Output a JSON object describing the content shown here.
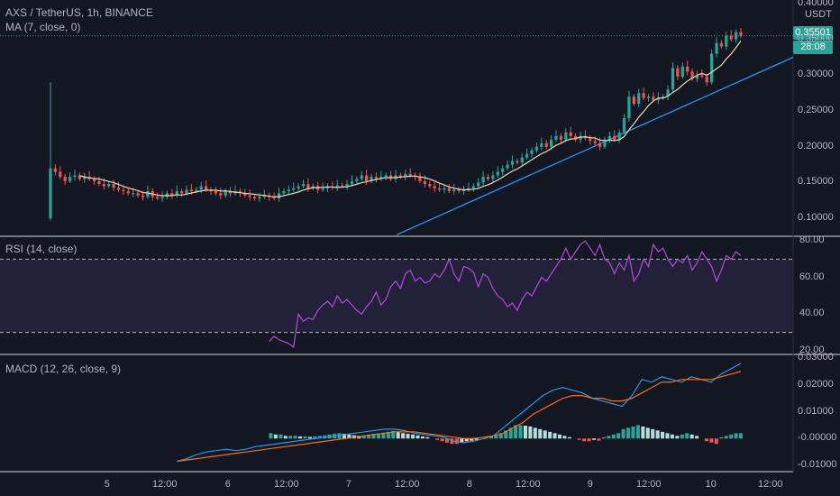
{
  "header": {
    "symbol": "AXS / TetherUS, 1h, BINANCE",
    "ma_label": "MA (7, close, 0)",
    "rsi_label": "RSI (14, close)",
    "macd_label": "MACD (12, 26, close, 9)",
    "currency": "USDT"
  },
  "price_tag": {
    "value": "0.35501",
    "countdown": "28:08",
    "color": "#26a69a"
  },
  "colors": {
    "up": "#26a69a",
    "down": "#ef5350",
    "ma": "#f0d5b0",
    "trend": "#2196f3",
    "rsi": "#b14dd8",
    "macd": "#2196f3",
    "signal": "#ff6d00",
    "hist_up_strong": "#26a69a",
    "hist_up_weak": "#b2dfdb",
    "hist_down_strong": "#ef5350",
    "hist_down_weak": "#ffcdd2"
  },
  "x_axis": {
    "labels": [
      "5",
      "12:00",
      "6",
      "12:00",
      "7",
      "12:00",
      "8",
      "12:00",
      "9",
      "12:00",
      "10",
      "12:00"
    ]
  },
  "chart_data": [
    {
      "type": "candlestick",
      "title": "AXS / TetherUS, 1h, BINANCE",
      "y_ticks": [
        "0.40000",
        "0.35000",
        "0.30000",
        "0.25000",
        "0.20000",
        "0.15000",
        "0.10000"
      ],
      "ylim": [
        0.075,
        0.405
      ],
      "last_price": 0.35501,
      "candles_close": [
        0.17,
        0.165,
        0.158,
        0.152,
        0.158,
        0.16,
        0.155,
        0.158,
        0.155,
        0.152,
        0.148,
        0.145,
        0.148,
        0.143,
        0.14,
        0.138,
        0.135,
        0.135,
        0.132,
        0.13,
        0.138,
        0.13,
        0.128,
        0.13,
        0.135,
        0.132,
        0.138,
        0.135,
        0.14,
        0.138,
        0.14,
        0.145,
        0.14,
        0.138,
        0.135,
        0.132,
        0.138,
        0.135,
        0.138,
        0.135,
        0.132,
        0.13,
        0.128,
        0.13,
        0.132,
        0.13,
        0.128,
        0.135,
        0.138,
        0.14,
        0.142,
        0.145,
        0.148,
        0.142,
        0.145,
        0.14,
        0.142,
        0.145,
        0.143,
        0.146,
        0.145,
        0.148,
        0.152,
        0.155,
        0.16,
        0.152,
        0.158,
        0.155,
        0.158,
        0.16,
        0.155,
        0.16,
        0.158,
        0.162,
        0.16,
        0.158,
        0.152,
        0.148,
        0.145,
        0.142,
        0.14,
        0.142,
        0.138,
        0.14,
        0.138,
        0.14,
        0.142,
        0.145,
        0.15,
        0.158,
        0.155,
        0.16,
        0.165,
        0.17,
        0.175,
        0.18,
        0.178,
        0.185,
        0.19,
        0.195,
        0.2,
        0.205,
        0.2,
        0.21,
        0.215,
        0.21,
        0.22,
        0.215,
        0.21,
        0.215,
        0.212,
        0.208,
        0.205,
        0.2,
        0.21,
        0.215,
        0.21,
        0.22,
        0.24,
        0.27,
        0.26,
        0.275,
        0.268,
        0.27,
        0.265,
        0.268,
        0.27,
        0.28,
        0.31,
        0.298,
        0.312,
        0.305,
        0.295,
        0.3,
        0.298,
        0.29,
        0.33,
        0.345,
        0.34,
        0.355,
        0.35,
        0.36,
        0.355
      ],
      "candles_open": [
        0.1,
        0.17,
        0.165,
        0.158,
        0.152,
        0.158,
        0.16,
        0.155,
        0.158,
        0.155,
        0.152,
        0.148,
        0.145,
        0.148,
        0.143,
        0.14,
        0.138,
        0.135,
        0.135,
        0.132,
        0.13,
        0.138,
        0.13,
        0.128,
        0.13,
        0.135,
        0.132,
        0.138,
        0.135,
        0.14,
        0.138,
        0.14,
        0.145,
        0.14,
        0.138,
        0.135,
        0.132,
        0.138,
        0.135,
        0.138,
        0.135,
        0.132,
        0.13,
        0.128,
        0.13,
        0.132,
        0.13,
        0.128,
        0.135,
        0.138,
        0.14,
        0.142,
        0.145,
        0.148,
        0.142,
        0.145,
        0.14,
        0.142,
        0.145,
        0.143,
        0.146,
        0.145,
        0.148,
        0.152,
        0.155,
        0.16,
        0.152,
        0.158,
        0.155,
        0.158,
        0.16,
        0.155,
        0.16,
        0.158,
        0.162,
        0.16,
        0.158,
        0.152,
        0.148,
        0.145,
        0.142,
        0.14,
        0.142,
        0.138,
        0.14,
        0.138,
        0.14,
        0.142,
        0.145,
        0.15,
        0.158,
        0.155,
        0.16,
        0.165,
        0.17,
        0.175,
        0.18,
        0.178,
        0.185,
        0.19,
        0.195,
        0.2,
        0.205,
        0.2,
        0.21,
        0.215,
        0.21,
        0.22,
        0.215,
        0.21,
        0.215,
        0.212,
        0.208,
        0.205,
        0.2,
        0.21,
        0.215,
        0.21,
        0.22,
        0.24,
        0.27,
        0.26,
        0.275,
        0.268,
        0.27,
        0.265,
        0.268,
        0.27,
        0.28,
        0.31,
        0.298,
        0.312,
        0.305,
        0.295,
        0.3,
        0.298,
        0.29,
        0.33,
        0.345,
        0.34,
        0.355,
        0.35,
        0.36
      ],
      "spike_high": 0.29,
      "trendline": [
        [
          0.075,
          0.325
        ],
        [
          0.0,
          0.0
        ]
      ]
    },
    {
      "type": "line",
      "title": "RSI (14, close)",
      "y_ticks": [
        "80.00",
        "60.00",
        "40.00",
        "20.00"
      ],
      "ylim": [
        18,
        82
      ],
      "bands": [
        30,
        70
      ],
      "values": [
        null,
        null,
        null,
        null,
        null,
        null,
        null,
        null,
        null,
        null,
        null,
        null,
        null,
        null,
        null,
        null,
        null,
        null,
        null,
        null,
        null,
        null,
        null,
        null,
        null,
        null,
        null,
        null,
        null,
        null,
        null,
        null,
        null,
        null,
        null,
        null,
        null,
        null,
        null,
        null,
        null,
        null,
        null,
        null,
        null,
        25,
        28,
        26,
        25,
        24,
        22,
        40,
        36,
        38,
        37,
        42,
        45,
        47,
        44,
        50,
        46,
        48,
        45,
        42,
        40,
        44,
        47,
        52,
        45,
        48,
        55,
        58,
        54,
        62,
        64,
        58,
        60,
        57,
        58,
        62,
        60,
        64,
        70,
        62,
        58,
        66,
        65,
        63,
        55,
        62,
        60,
        54,
        50,
        48,
        44,
        46,
        42,
        48,
        52,
        50,
        55,
        60,
        58,
        62,
        66,
        70,
        76,
        70,
        74,
        78,
        80,
        76,
        72,
        78,
        70,
        68,
        62,
        68,
        64,
        72,
        58,
        62,
        70,
        66,
        78,
        74,
        76,
        70,
        66,
        70,
        68,
        72,
        64,
        68,
        74,
        70,
        66,
        58,
        64,
        72,
        70,
        74,
        72
      ],
      "y_label": ""
    },
    {
      "type": "line",
      "title": "MACD (12, 26, close, 9)",
      "y_ticks": [
        "0.03000",
        "0.02000",
        "0.01000",
        "-0.00000",
        "-0.01000"
      ],
      "ylim": [
        -0.012,
        0.031
      ],
      "macd": [
        -0.0085,
        -0.0075,
        -0.006,
        -0.005,
        -0.0045,
        -0.004,
        -0.0045,
        -0.004,
        -0.003,
        -0.0025,
        -0.002,
        -0.0015,
        -0.001,
        -0.0005,
        0.0,
        0.0005,
        0.001,
        0.0015,
        0.002,
        0.0025,
        0.003,
        0.0035,
        0.0035,
        0.003,
        0.002,
        0.0015,
        0.001,
        0.0005,
        -0.001,
        -0.0015,
        -0.001,
        0.0,
        0.001,
        0.004,
        0.007,
        0.01,
        0.013,
        0.016,
        0.018,
        0.019,
        0.018,
        0.017,
        0.015,
        0.014,
        0.013,
        0.012,
        0.016,
        0.022,
        0.021,
        0.023,
        0.022,
        0.021,
        0.023,
        0.022,
        0.021,
        0.024,
        0.026,
        0.028
      ],
      "signal": [
        -0.0085,
        -0.008,
        -0.0075,
        -0.007,
        -0.0065,
        -0.006,
        -0.0055,
        -0.005,
        -0.0045,
        -0.004,
        -0.0035,
        -0.003,
        -0.0025,
        -0.002,
        -0.0015,
        -0.001,
        -0.0005,
        0.0,
        0.0005,
        0.001,
        0.0015,
        0.002,
        0.0025,
        0.0025,
        0.0025,
        0.002,
        0.0015,
        0.001,
        0.0005,
        0.0,
        0.0,
        0.0005,
        0.001,
        0.002,
        0.004,
        0.006,
        0.009,
        0.011,
        0.013,
        0.015,
        0.016,
        0.016,
        0.015,
        0.015,
        0.014,
        0.014,
        0.015,
        0.017,
        0.019,
        0.021,
        0.021,
        0.022,
        0.022,
        0.022,
        0.022,
        0.023,
        0.024,
        0.025
      ],
      "histogram": [
        0,
        0,
        0,
        0,
        0,
        0,
        0,
        0,
        0,
        0,
        0,
        0,
        0,
        0,
        0,
        0,
        0,
        0,
        0,
        0,
        0,
        0,
        0,
        0,
        0,
        0,
        0,
        0,
        0,
        0,
        0,
        0,
        0,
        0,
        0,
        0,
        0,
        0,
        0,
        0,
        0,
        0,
        0,
        0,
        0,
        0.002,
        0.0015,
        0.0015,
        0.001,
        0.001,
        0.001,
        0.0008,
        0.0008,
        0.0006,
        0.0008,
        0.001,
        0.0012,
        0.0015,
        0.0018,
        0.002,
        0.0018,
        0.0015,
        0.0012,
        0.001,
        0.0012,
        0.0015,
        0.0018,
        0.002,
        0.0022,
        0.0025,
        0.0028,
        0.0025,
        0.002,
        0.0018,
        0.0015,
        0.0012,
        0.0008,
        0.0005,
        0.0,
        -0.0005,
        -0.001,
        -0.0015,
        -0.002,
        -0.002,
        -0.0015,
        -0.001,
        -0.0008,
        -0.0005,
        0.0,
        0.0005,
        0.0008,
        0.0012,
        0.002,
        0.003,
        0.004,
        0.005,
        0.005,
        0.0048,
        0.0045,
        0.004,
        0.0035,
        0.003,
        0.0025,
        0.002,
        0.0015,
        0.001,
        0.0005,
        0.0,
        -0.0005,
        -0.001,
        -0.001,
        -0.0005,
        -0.0008,
        0.0005,
        0.001,
        0.0015,
        0.002,
        0.0035,
        0.004,
        0.0045,
        0.005,
        0.0045,
        0.004,
        0.0035,
        0.003,
        0.0025,
        0.002,
        0.0015,
        0.001,
        0.0015,
        0.002,
        0.0015,
        0.001,
        0.0,
        -0.001,
        -0.0015,
        -0.002,
        0.0005,
        0.001,
        0.0015,
        0.002,
        0.002
      ]
    }
  ]
}
